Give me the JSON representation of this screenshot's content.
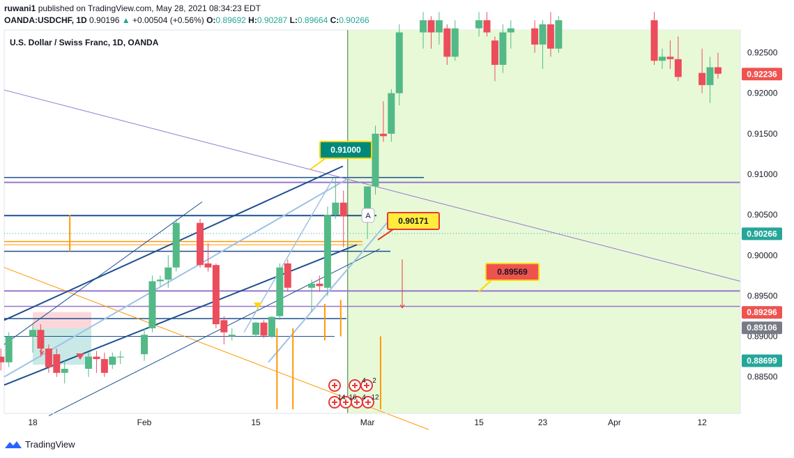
{
  "header": {
    "user": "ruwani1",
    "published_text": "published on TradingView.com, May 28, 2021 08:34:23 EDT",
    "symbol": "OANDA:USDCHF, 1D",
    "last": "0.90196",
    "change_arrow": "▲",
    "change": "+0.00504 (+0.56%)",
    "o_label": "O:",
    "o": "0.89692",
    "h_label": "H:",
    "h": "0.90287",
    "l_label": "L:",
    "l": "0.89664",
    "c_label": "C:",
    "c": "0.90266"
  },
  "chart_title": "U.S. Dollar / Swiss Franc, 1D, OANDA",
  "footer": {
    "logo_icon": "tradingview-logo-icon",
    "brand": "TradingView"
  },
  "colors": {
    "up": "#53b987",
    "down": "#eb4d5c",
    "channel": "#1c4f8f",
    "light_channel": "#9ec2e6",
    "purple": "#9575cd",
    "orange": "#ff9800",
    "zone": "#e8f9d8"
  },
  "chart_data": {
    "type": "candlestick",
    "title": "U.S. Dollar / Swiss Franc, 1D, OANDA",
    "ylim": [
      0.8805,
      0.9278
    ],
    "y_ticks": [
      0.925,
      0.92,
      0.915,
      0.91,
      0.905,
      0.9,
      0.895,
      0.89,
      0.885
    ],
    "y_tick_labels": [
      "0.92500",
      "0.92000",
      "0.91500",
      "0.91000",
      "0.90500",
      "0.90000",
      "0.89500",
      "0.89000",
      "0.88500"
    ],
    "x_ticks": [
      {
        "label": "18",
        "date": "2021-01-18"
      },
      {
        "label": "Feb",
        "date": "2021-02-01"
      },
      {
        "label": "15",
        "date": "2021-02-15"
      },
      {
        "label": "Mar",
        "date": "2021-03-01"
      },
      {
        "label": "15",
        "date": "2021-03-15"
      },
      {
        "label": "23",
        "date": "2021-03-23"
      },
      {
        "label": "Apr",
        "date": "2021-04-01"
      },
      {
        "label": "12",
        "date": "2021-04-12"
      }
    ],
    "price_labels": [
      {
        "text": "0.92236",
        "value": 0.92236,
        "kind": "down"
      },
      {
        "text": "0.90266",
        "value": 0.90266,
        "kind": "up"
      },
      {
        "text": "0.89296",
        "value": 0.89296,
        "kind": "down"
      },
      {
        "text": "0.89106",
        "value": 0.89106,
        "kind": "grey"
      },
      {
        "text": "0.88699",
        "value": 0.88699,
        "kind": "up"
      }
    ],
    "callouts": [
      {
        "text": "0.91000",
        "value": 0.91,
        "style": "teal"
      },
      {
        "text": "0.90171",
        "value": 0.90171,
        "style": "yellow"
      },
      {
        "text": "0.89569",
        "value": 0.89569,
        "style": "red"
      }
    ],
    "marker_text": "A",
    "event_labels": [
      "4",
      "2",
      "14",
      "16",
      "4",
      "12"
    ],
    "candles": [
      {
        "date": "2021-01-14",
        "o": 0.8875,
        "h": 0.8885,
        "l": 0.8858,
        "c": 0.8868
      },
      {
        "date": "2021-01-15",
        "o": 0.8868,
        "h": 0.8905,
        "l": 0.8862,
        "c": 0.89
      },
      {
        "date": "2021-01-18",
        "o": 0.89,
        "h": 0.8915,
        "l": 0.888,
        "c": 0.8908
      },
      {
        "date": "2021-01-19",
        "o": 0.8908,
        "h": 0.8915,
        "l": 0.8875,
        "c": 0.8885
      },
      {
        "date": "2021-01-20",
        "o": 0.8885,
        "h": 0.889,
        "l": 0.8855,
        "c": 0.8862
      },
      {
        "date": "2021-01-21",
        "o": 0.8878,
        "h": 0.8885,
        "l": 0.885,
        "c": 0.8855
      },
      {
        "date": "2021-01-22",
        "o": 0.8855,
        "h": 0.887,
        "l": 0.8842,
        "c": 0.886
      },
      {
        "date": "2021-01-25",
        "o": 0.886,
        "h": 0.888,
        "l": 0.885,
        "c": 0.8875
      },
      {
        "date": "2021-01-26",
        "o": 0.8875,
        "h": 0.8882,
        "l": 0.8855,
        "c": 0.8872
      },
      {
        "date": "2021-01-27",
        "o": 0.8872,
        "h": 0.888,
        "l": 0.885,
        "c": 0.8855
      },
      {
        "date": "2021-01-28",
        "o": 0.8865,
        "h": 0.888,
        "l": 0.886,
        "c": 0.8875
      },
      {
        "date": "2021-01-29",
        "o": 0.8874,
        "h": 0.8882,
        "l": 0.8866,
        "c": 0.8875
      },
      {
        "date": "2021-02-01",
        "o": 0.8878,
        "h": 0.891,
        "l": 0.887,
        "c": 0.8902
      },
      {
        "date": "2021-02-02",
        "o": 0.891,
        "h": 0.8975,
        "l": 0.8905,
        "c": 0.8968
      },
      {
        "date": "2021-02-03",
        "o": 0.8968,
        "h": 0.8975,
        "l": 0.8962,
        "c": 0.897
      },
      {
        "date": "2021-02-04",
        "o": 0.897,
        "h": 0.9,
        "l": 0.896,
        "c": 0.8985
      },
      {
        "date": "2021-02-05",
        "o": 0.8985,
        "h": 0.9045,
        "l": 0.898,
        "c": 0.904
      },
      {
        "date": "2021-02-08",
        "o": 0.904,
        "h": 0.9045,
        "l": 0.8985,
        "c": 0.8988
      },
      {
        "date": "2021-02-09",
        "o": 0.899,
        "h": 0.9015,
        "l": 0.898,
        "c": 0.8985
      },
      {
        "date": "2021-02-10",
        "o": 0.8988,
        "h": 0.899,
        "l": 0.891,
        "c": 0.8915
      },
      {
        "date": "2021-02-11",
        "o": 0.892,
        "h": 0.8925,
        "l": 0.889,
        "c": 0.8905
      },
      {
        "date": "2021-02-12",
        "o": 0.89,
        "h": 0.891,
        "l": 0.8895,
        "c": 0.8902
      },
      {
        "date": "2021-02-15",
        "o": 0.8902,
        "h": 0.8918,
        "l": 0.89,
        "c": 0.8917
      },
      {
        "date": "2021-02-16",
        "o": 0.8917,
        "h": 0.892,
        "l": 0.8898,
        "c": 0.8901
      },
      {
        "date": "2021-02-17",
        "o": 0.89,
        "h": 0.8925,
        "l": 0.8898,
        "c": 0.8924
      },
      {
        "date": "2021-02-18",
        "o": 0.8925,
        "h": 0.899,
        "l": 0.892,
        "c": 0.8985
      },
      {
        "date": "2021-02-19",
        "o": 0.899,
        "h": 0.8995,
        "l": 0.8955,
        "c": 0.896
      },
      {
        "date": "2021-02-22",
        "o": 0.896,
        "h": 0.897,
        "l": 0.893,
        "c": 0.8965
      },
      {
        "date": "2021-02-23",
        "o": 0.8965,
        "h": 0.8975,
        "l": 0.8955,
        "c": 0.8962
      },
      {
        "date": "2021-02-24",
        "o": 0.896,
        "h": 0.906,
        "l": 0.895,
        "c": 0.905
      },
      {
        "date": "2021-02-25",
        "o": 0.905,
        "h": 0.9095,
        "l": 0.9045,
        "c": 0.9065
      },
      {
        "date": "2021-02-26",
        "o": 0.9065,
        "h": 0.908,
        "l": 0.901,
        "c": 0.9048
      },
      {
        "date": "2021-03-01",
        "o": 0.9048,
        "h": 0.9085,
        "l": 0.902,
        "c": 0.9085
      },
      {
        "date": "2021-03-02",
        "o": 0.9085,
        "h": 0.916,
        "l": 0.9075,
        "c": 0.915
      },
      {
        "date": "2021-03-03",
        "o": 0.915,
        "h": 0.919,
        "l": 0.914,
        "c": 0.9147
      },
      {
        "date": "2021-03-04",
        "o": 0.915,
        "h": 0.9205,
        "l": 0.914,
        "c": 0.92
      },
      {
        "date": "2021-03-05",
        "o": 0.92,
        "h": 0.9285,
        "l": 0.9185,
        "c": 0.9275
      },
      {
        "date": "2021-03-08",
        "o": 0.9275,
        "h": 0.93,
        "l": 0.9255,
        "c": 0.929
      },
      {
        "date": "2021-03-09",
        "o": 0.929,
        "h": 0.9295,
        "l": 0.9255,
        "c": 0.9275
      },
      {
        "date": "2021-03-10",
        "o": 0.9275,
        "h": 0.93,
        "l": 0.926,
        "c": 0.929
      },
      {
        "date": "2021-03-11",
        "o": 0.928,
        "h": 0.9285,
        "l": 0.9235,
        "c": 0.9245
      },
      {
        "date": "2021-03-12",
        "o": 0.9245,
        "h": 0.929,
        "l": 0.924,
        "c": 0.928
      },
      {
        "date": "2021-03-15",
        "o": 0.928,
        "h": 0.93,
        "l": 0.927,
        "c": 0.929
      },
      {
        "date": "2021-03-16",
        "o": 0.929,
        "h": 0.93,
        "l": 0.927,
        "c": 0.9275
      },
      {
        "date": "2021-03-17",
        "o": 0.9265,
        "h": 0.927,
        "l": 0.9215,
        "c": 0.9235
      },
      {
        "date": "2021-03-18",
        "o": 0.9235,
        "h": 0.9285,
        "l": 0.9225,
        "c": 0.9275
      },
      {
        "date": "2021-03-19",
        "o": 0.9275,
        "h": 0.929,
        "l": 0.9255,
        "c": 0.928
      },
      {
        "date": "2021-03-22",
        "o": 0.928,
        "h": 0.929,
        "l": 0.925,
        "c": 0.926
      },
      {
        "date": "2021-03-23",
        "o": 0.926,
        "h": 0.929,
        "l": 0.923,
        "c": 0.9285
      },
      {
        "date": "2021-03-24",
        "o": 0.9285,
        "h": 0.93,
        "l": 0.9245,
        "c": 0.9255
      },
      {
        "date": "2021-03-25",
        "o": 0.9255,
        "h": 0.9295,
        "l": 0.925,
        "c": 0.929
      },
      {
        "date": "2021-04-06",
        "o": 0.929,
        "h": 0.93,
        "l": 0.9235,
        "c": 0.924
      },
      {
        "date": "2021-04-07",
        "o": 0.924,
        "h": 0.9255,
        "l": 0.923,
        "c": 0.9245
      },
      {
        "date": "2021-04-08",
        "o": 0.9245,
        "h": 0.9265,
        "l": 0.923,
        "c": 0.9242
      },
      {
        "date": "2021-04-09",
        "o": 0.9242,
        "h": 0.927,
        "l": 0.9215,
        "c": 0.922
      },
      {
        "date": "2021-04-12",
        "o": 0.9225,
        "h": 0.9255,
        "l": 0.92,
        "c": 0.921
      },
      {
        "date": "2021-04-13",
        "o": 0.921,
        "h": 0.9245,
        "l": 0.9188,
        "c": 0.9232
      },
      {
        "date": "2021-04-14",
        "o": 0.9232,
        "h": 0.925,
        "l": 0.9218,
        "c": 0.9224
      }
    ]
  }
}
